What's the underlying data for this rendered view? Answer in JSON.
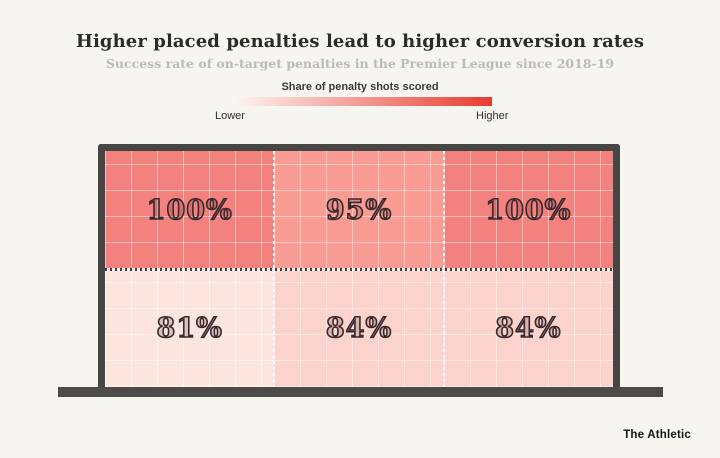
{
  "page": {
    "background": "#f7f5f0"
  },
  "header": {
    "title": "Higher placed penalties lead to higher conversion rates",
    "subtitle": "Success rate of on-target penalties in the Premier League since 2018-19"
  },
  "legend": {
    "label": "Share of penalty shots scored",
    "low_label": "Lower",
    "high_label": "Higher",
    "gradient_start": "#fdf6f4",
    "gradient_end": "#e83b30"
  },
  "chart_data": {
    "type": "heatmap",
    "title": "Higher placed penalties lead to higher conversion rates",
    "subtitle": "Success rate of on-target penalties in the Premier League since 2018-19",
    "legend": {
      "label": "Share of penalty shots scored",
      "min_label": "Lower",
      "max_label": "Higher"
    },
    "rows": [
      "top",
      "bottom"
    ],
    "columns": [
      "left",
      "center",
      "right"
    ],
    "values": [
      [
        100,
        95,
        100
      ],
      [
        81,
        84,
        84
      ]
    ],
    "value_unit": "%",
    "cells": [
      {
        "row": "top",
        "col": "left",
        "value": 100,
        "label": "100%",
        "color": "#f3817e"
      },
      {
        "row": "top",
        "col": "center",
        "value": 95,
        "label": "95%",
        "color": "#f99d94"
      },
      {
        "row": "top",
        "col": "right",
        "value": 100,
        "label": "100%",
        "color": "#f3817e"
      },
      {
        "row": "bottom",
        "col": "left",
        "value": 81,
        "label": "81%",
        "color": "#fce5df"
      },
      {
        "row": "bottom",
        "col": "center",
        "value": 84,
        "label": "84%",
        "color": "#fbd3cc"
      },
      {
        "row": "bottom",
        "col": "right",
        "value": 84,
        "label": "84%",
        "color": "#fbd3cc"
      }
    ],
    "frame_color": "#474645",
    "layout": {
      "shape": "football-goal",
      "grid": "3x2",
      "legend_position": "top"
    }
  },
  "footer": {
    "brand": "The Athletic"
  }
}
